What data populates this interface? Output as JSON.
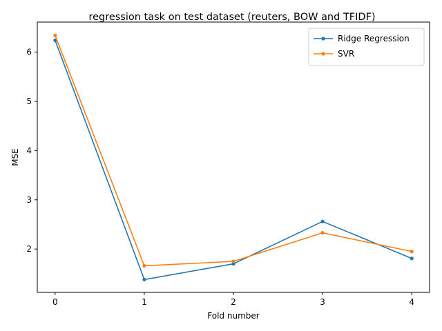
{
  "chart_data": {
    "type": "line",
    "title": "regression task on test dataset (reuters, BOW and TFIDF)",
    "xlabel": "Fold number",
    "ylabel": "MSE",
    "x": [
      0,
      1,
      2,
      3,
      4
    ],
    "xticks": [
      "0",
      "1",
      "2",
      "3",
      "4"
    ],
    "yticks": [
      "2",
      "3",
      "4",
      "5",
      "6"
    ],
    "xlim": [
      -0.2,
      4.2
    ],
    "ylim": [
      1.12,
      6.61
    ],
    "grid": false,
    "legend_position": "top-right",
    "series": [
      {
        "name": "Ridge Regression",
        "color": "#1f77b4",
        "values": [
          6.24,
          1.38,
          1.7,
          2.56,
          1.81
        ]
      },
      {
        "name": "SVR",
        "color": "#ff7f0e",
        "values": [
          6.34,
          1.66,
          1.75,
          2.33,
          1.95
        ]
      }
    ]
  }
}
